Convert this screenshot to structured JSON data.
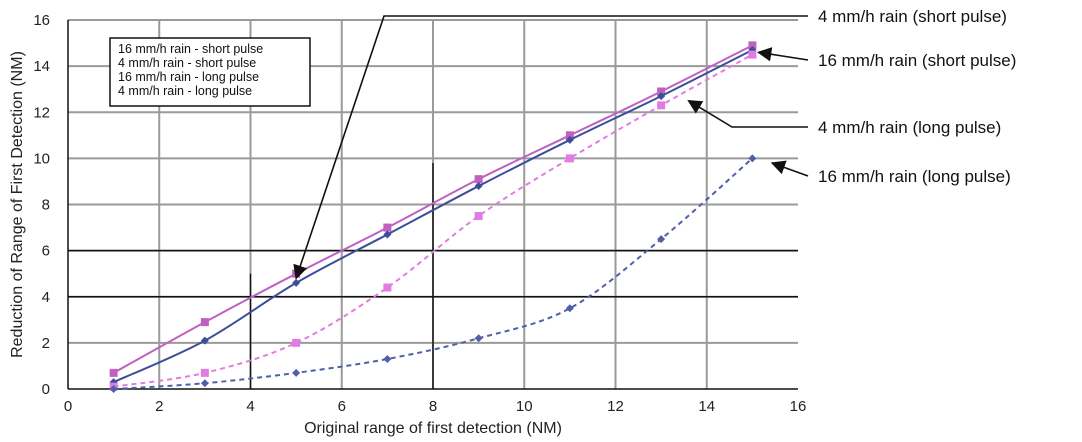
{
  "chart_data": {
    "type": "line",
    "xlabel": "Original range of first detection (NM)",
    "ylabel": "Reduction of Range of First Detection (NM)",
    "xlim": [
      0,
      16
    ],
    "ylim": [
      0,
      16
    ],
    "x_ticks": [
      "0",
      "2",
      "4",
      "6",
      "8",
      "10",
      "12",
      "14",
      "16"
    ],
    "y_ticks": [
      "0",
      "2",
      "4",
      "6",
      "8",
      "10",
      "12",
      "14",
      "16"
    ],
    "grid": true,
    "legend_position": "top-left",
    "legend": [
      "16 mm/h rain - short pulse",
      "4 mm/h rain - short pulse",
      "16 mm/h rain - long pulse",
      "4 mm/h rain - long pulse"
    ],
    "series": [
      {
        "name": "16 mm/h rain - short pulse",
        "style": "solid",
        "color": "#c060c0",
        "marker": "square",
        "x": [
          1,
          3,
          5,
          7,
          9,
          11,
          13,
          15
        ],
        "y": [
          0.7,
          2.9,
          5.0,
          7.0,
          9.1,
          11.0,
          12.9,
          14.9
        ]
      },
      {
        "name": "4 mm/h rain - short pulse",
        "style": "solid",
        "color": "#3c4e9a",
        "marker": "diamond",
        "x": [
          1,
          3,
          5,
          7,
          9,
          11,
          13,
          15
        ],
        "y": [
          0.3,
          2.1,
          4.6,
          6.7,
          8.8,
          10.8,
          12.7,
          14.7
        ]
      },
      {
        "name": "16 mm/h rain - long pulse",
        "style": "dashed",
        "color": "#e27be2",
        "marker": "square",
        "x": [
          1,
          3,
          5,
          7,
          9,
          11,
          13,
          15
        ],
        "y": [
          0.1,
          0.7,
          2.0,
          4.4,
          7.5,
          10.0,
          12.3,
          14.5
        ]
      },
      {
        "name": "4 mm/h rain - long pulse",
        "style": "dashed",
        "color": "#5060a8",
        "marker": "diamond",
        "x": [
          1,
          3,
          5,
          7,
          9,
          11,
          13,
          15
        ],
        "y": [
          0.0,
          0.25,
          0.7,
          1.3,
          2.2,
          3.5,
          6.5,
          10.0
        ]
      }
    ],
    "annotations": [
      {
        "text": "4 mm/h rain (short pulse)",
        "target_x": 5.0,
        "target_y": 4.8
      },
      {
        "text": "16 mm/h rain (short pulse)",
        "target_x": 15.0,
        "target_y": 14.6
      },
      {
        "text": "4 mm/h rain (long pulse)",
        "target_x": 13.6,
        "target_y": 12.5
      },
      {
        "text": "16 mm/h rain (long pulse)",
        "target_x": 15.3,
        "target_y": 9.8
      }
    ]
  }
}
